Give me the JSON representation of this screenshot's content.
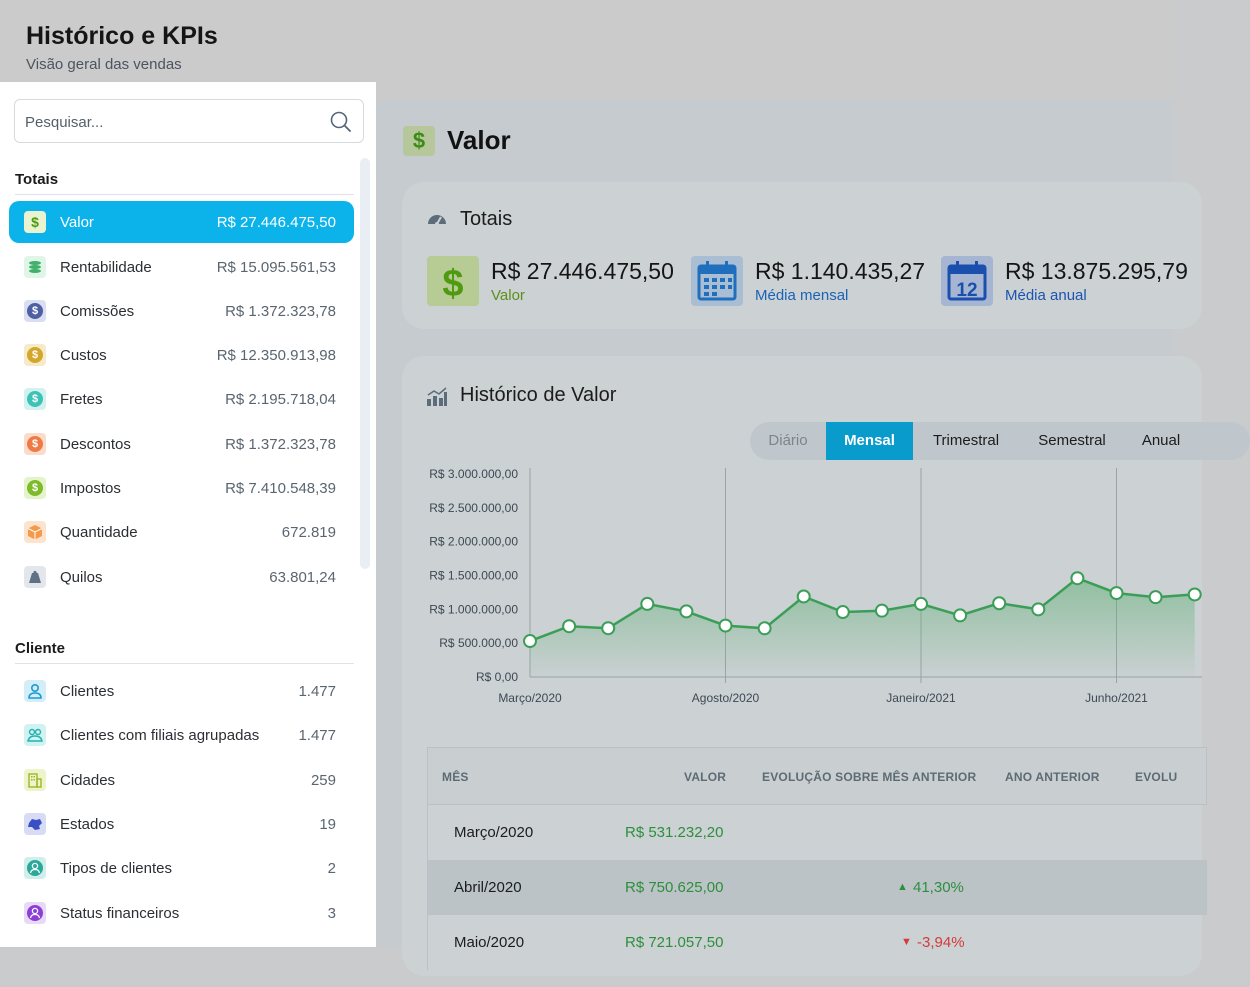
{
  "header": {
    "title": "Histórico e KPIs",
    "subtitle": "Visão geral das vendas"
  },
  "sidebar": {
    "search_placeholder": "Pesquisar...",
    "sections": [
      {
        "title": "Totais",
        "items": [
          {
            "label": "Valor",
            "value": "R$ 27.446.475,50",
            "icon": "dollar-icon",
            "active": true
          },
          {
            "label": "Rentabilidade",
            "value": "R$ 15.095.561,53",
            "icon": "money-stack-icon"
          },
          {
            "label": "Comissões",
            "value": "R$ 1.372.323,78",
            "icon": "coin-icon"
          },
          {
            "label": "Custos",
            "value": "R$ 12.350.913,98",
            "icon": "coin-icon"
          },
          {
            "label": "Fretes",
            "value": "R$ 2.195.718,04",
            "icon": "coin-icon"
          },
          {
            "label": "Descontos",
            "value": "R$ 1.372.323,78",
            "icon": "coin-icon"
          },
          {
            "label": "Impostos",
            "value": "R$ 7.410.548,39",
            "icon": "coin-icon"
          },
          {
            "label": "Quantidade",
            "value": "672.819",
            "icon": "box-icon"
          },
          {
            "label": "Quilos",
            "value": "63.801,24",
            "icon": "weight-icon"
          }
        ]
      },
      {
        "title": "Cliente",
        "items": [
          {
            "label": "Clientes",
            "value": "1.477",
            "icon": "user-icon"
          },
          {
            "label": "Clientes com filiais agrupadas",
            "value": "1.477",
            "icon": "users-group-icon"
          },
          {
            "label": "Cidades",
            "value": "259",
            "icon": "building-icon"
          },
          {
            "label": "Estados",
            "value": "19",
            "icon": "map-icon"
          },
          {
            "label": "Tipos de clientes",
            "value": "2",
            "icon": "user-badge-icon"
          },
          {
            "label": "Status financeiros",
            "value": "3",
            "icon": "user-status-icon"
          }
        ]
      }
    ]
  },
  "main": {
    "title": "Valor",
    "totais": {
      "title": "Totais",
      "kpis": [
        {
          "value": "R$ 27.446.475,50",
          "caption": "Valor",
          "color": "#5e8f1d"
        },
        {
          "value": "R$ 1.140.435,27",
          "caption": "Média mensal",
          "color": "#1b62b8"
        },
        {
          "value": "R$ 13.875.295,79",
          "caption": "Média anual",
          "color": "#1b55b0"
        }
      ]
    },
    "historico": {
      "title": "Histórico de Valor",
      "tabs": [
        "Diário",
        "Mensal",
        "Trimestral",
        "Semestral",
        "Anual"
      ],
      "active_tab": "Mensal"
    },
    "table": {
      "headers": [
        "MÊS",
        "VALOR",
        "EVOLUÇÃO SOBRE MÊS ANTERIOR",
        "ANO ANTERIOR",
        "EVOLU"
      ],
      "rows": [
        {
          "month": "Março/2020",
          "value": "R$ 531.232,20",
          "evolution": "",
          "trend": ""
        },
        {
          "month": "Abril/2020",
          "value": "R$ 750.625,00",
          "evolution": "41,30%",
          "trend": "up"
        },
        {
          "month": "Maio/2020",
          "value": "R$ 721.057,50",
          "evolution": "-3,94%",
          "trend": "down"
        }
      ]
    }
  },
  "chart_data": {
    "type": "area",
    "ytick_labels": [
      "R$ 0,00",
      "R$ 500.000,00",
      "R$ 1.000.000,00",
      "R$ 1.500.000,00",
      "R$ 2.000.000,00",
      "R$ 2.500.000,00",
      "R$ 3.000.000,00"
    ],
    "xtick_labels": [
      "Março/2020",
      "Agosto/2020",
      "Janeiro/2021",
      "Junho/2021"
    ],
    "ylim": [
      0,
      3000000
    ],
    "grid": "vertical lines at x ticks",
    "series": [
      {
        "color": "#3a9e57",
        "x": [
          "2020-03",
          "2020-04",
          "2020-05",
          "2020-06",
          "2020-07",
          "2020-08",
          "2020-09",
          "2020-10",
          "2020-11",
          "2020-12",
          "2021-01",
          "2021-02",
          "2021-03",
          "2021-04",
          "2021-05",
          "2021-06",
          "2021-07",
          "2021-08"
        ],
        "values": [
          531232,
          750625,
          721058,
          1080000,
          970000,
          760000,
          720000,
          1190000,
          960000,
          980000,
          1080000,
          910000,
          1090000,
          1000000,
          1460000,
          1240000,
          1180000,
          1220000
        ]
      }
    ]
  }
}
